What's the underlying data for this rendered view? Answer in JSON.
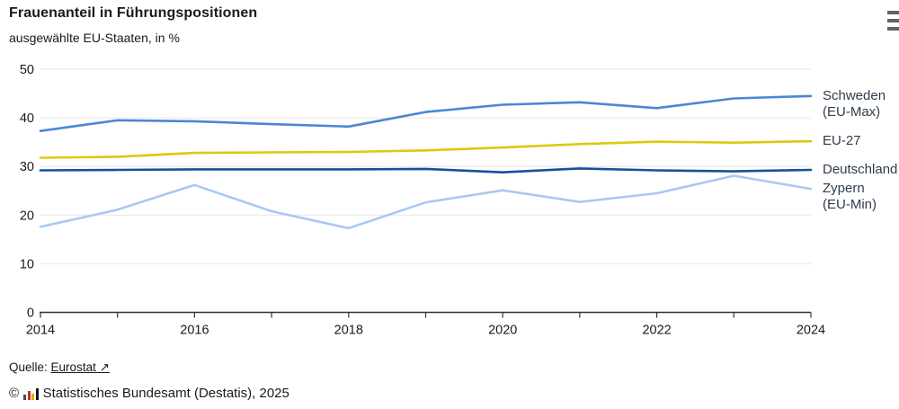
{
  "header": {
    "title": "Frauenanteil in Führungspositionen",
    "subtitle": "ausgewählte EU-Staaten, in %",
    "menu_icon": "hamburger-menu-icon"
  },
  "chart_data": {
    "type": "line",
    "x": [
      2014,
      2015,
      2016,
      2017,
      2018,
      2019,
      2020,
      2021,
      2022,
      2023,
      2024
    ],
    "series": [
      {
        "name": "Schweden (EU-Max)",
        "legend_lines": [
          "Schweden",
          "(EU-Max)"
        ],
        "color": "#4a86d8",
        "values": [
          37.3,
          39.5,
          39.3,
          38.7,
          38.2,
          41.2,
          42.7,
          43.2,
          42.0,
          44.0,
          44.5
        ]
      },
      {
        "name": "EU-27",
        "legend_lines": [
          "EU-27"
        ],
        "color": "#ddc90f",
        "values": [
          31.8,
          32.0,
          32.8,
          32.9,
          33.0,
          33.3,
          33.9,
          34.6,
          35.1,
          34.9,
          35.2
        ]
      },
      {
        "name": "Deutschland",
        "legend_lines": [
          "Deutschland"
        ],
        "color": "#15509e",
        "values": [
          29.2,
          29.3,
          29.4,
          29.4,
          29.4,
          29.5,
          28.8,
          29.6,
          29.2,
          29.0,
          29.3
        ]
      },
      {
        "name": "Zypern (EU-Min)",
        "legend_lines": [
          "Zypern",
          "(EU-Min)"
        ],
        "color": "#a9c9f1",
        "values": [
          17.6,
          21.1,
          26.2,
          20.8,
          17.3,
          22.6,
          25.1,
          22.7,
          24.5,
          28.1,
          25.4
        ]
      }
    ],
    "title": "Frauenanteil in Führungspositionen",
    "subtitle": "ausgewählte EU-Staaten, in %",
    "xlabel": "",
    "ylabel": "",
    "ylim": [
      0,
      50
    ],
    "yticks": [
      0,
      10,
      20,
      30,
      40,
      50
    ],
    "xtick_labels": [
      "2014",
      "2016",
      "2018",
      "2020",
      "2022",
      "2024"
    ],
    "grid": "horizontal",
    "legend_position": "right",
    "grid_color": "#e6e6e6",
    "axis_color": "#333333",
    "tick_label_color": "#1a1a1a"
  },
  "footer": {
    "source_label": "Quelle:",
    "source_link": "Eurostat ↗",
    "copyright_symbol": "©",
    "copyright_text": "Statistisches Bundesamt (Destatis), 2025"
  }
}
